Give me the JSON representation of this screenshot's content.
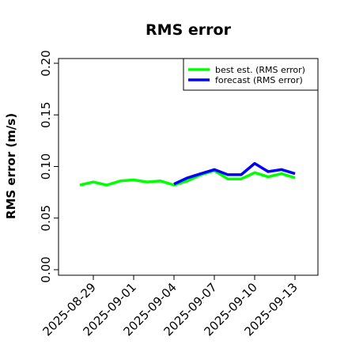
{
  "chart_data": {
    "type": "line",
    "title": "RMS error",
    "ylabel": "RMS error (m/s)",
    "xlabel": "",
    "ylim": [
      0.0,
      0.21
    ],
    "yticks": [
      "0.00",
      "0.05",
      "0.10",
      "0.15",
      "0.20"
    ],
    "ytick_values": [
      0.0,
      0.05,
      0.1,
      0.15,
      0.2
    ],
    "xlim": [
      "2025-08-27",
      "2025-09-14"
    ],
    "xticks": [
      "2025-08-29",
      "2025-09-01",
      "2025-09-04",
      "2025-09-07",
      "2025-09-10",
      "2025-09-13"
    ],
    "highlighted_xtick": "2025-09-04",
    "highlight_color": "#228B22",
    "grid": false,
    "legend_position": "top-right",
    "series": [
      {
        "name": "best est. (RMS error)",
        "color": "#00ff00",
        "x": [
          "2025-08-28",
          "2025-08-29",
          "2025-08-30",
          "2025-08-31",
          "2025-09-01",
          "2025-09-02",
          "2025-09-03",
          "2025-09-04",
          "2025-09-05",
          "2025-09-06",
          "2025-09-07",
          "2025-09-08",
          "2025-09-09",
          "2025-09-10",
          "2025-09-11",
          "2025-09-12",
          "2025-09-13"
        ],
        "values": [
          0.082,
          0.085,
          0.082,
          0.086,
          0.087,
          0.085,
          0.086,
          0.082,
          0.086,
          0.092,
          0.096,
          0.088,
          0.088,
          0.094,
          0.09,
          0.093,
          0.089
        ]
      },
      {
        "name": "forecast (RMS error)",
        "color": "#0000ff",
        "x": [
          "2025-09-04",
          "2025-09-05",
          "2025-09-06",
          "2025-09-07",
          "2025-09-08",
          "2025-09-09",
          "2025-09-10",
          "2025-09-11",
          "2025-09-12",
          "2025-09-13"
        ],
        "values": [
          0.083,
          0.089,
          0.093,
          0.097,
          0.092,
          0.092,
          0.103,
          0.095,
          0.097,
          0.093
        ]
      }
    ]
  }
}
